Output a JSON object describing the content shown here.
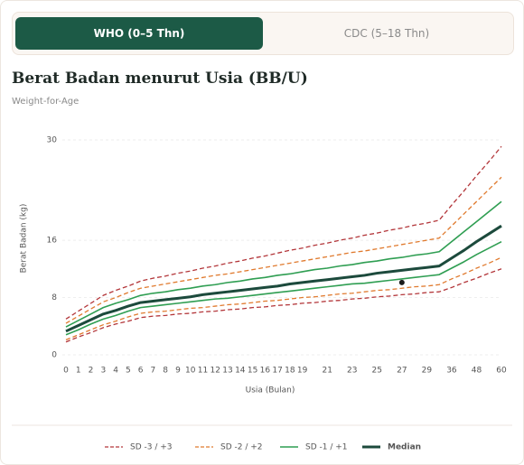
{
  "tabs": [
    {
      "label": "WHO (0–5 Thn)",
      "active": true
    },
    {
      "label": "CDC (5–18 Thn)",
      "active": false
    }
  ],
  "chart_data": {
    "type": "line",
    "title": "Berat Badan menurut Usia (BB/U)",
    "subtitle": "Weight-for-Age",
    "x_label": "Usia (Bulan)",
    "y_label": "Berat Badan (kg)",
    "categories": [
      0,
      1,
      2,
      3,
      4,
      5,
      6,
      7,
      8,
      9,
      10,
      11,
      12,
      13,
      14,
      15,
      16,
      17,
      18,
      19,
      null,
      21,
      null,
      23,
      null,
      25,
      null,
      27,
      null,
      29,
      null,
      36,
      null,
      48,
      null,
      60
    ],
    "ylim": [
      0,
      30
    ],
    "yticks": [
      0,
      8,
      16,
      30
    ],
    "grid": true,
    "series": [
      {
        "name": "SD -3 / +3",
        "color": "#b3363a",
        "dashed": true,
        "width": 1.3,
        "lines": [
          [
            1.8,
            2.5,
            3.1,
            3.8,
            4.3,
            4.7,
            5.2,
            5.4,
            5.5,
            5.7,
            5.8,
            6.0,
            6.1,
            6.3,
            6.4,
            6.6,
            6.7,
            6.9,
            7.0,
            7.2,
            7.3,
            7.5,
            7.6,
            7.8,
            7.9,
            8.1,
            8.2,
            8.4,
            8.5,
            8.7,
            8.8,
            9.4,
            10.1,
            10.7,
            11.4,
            12.0
          ],
          [
            5.0,
            6.1,
            7.2,
            8.3,
            9.0,
            9.6,
            10.3,
            10.7,
            11.0,
            11.4,
            11.7,
            12.1,
            12.4,
            12.8,
            13.1,
            13.5,
            13.8,
            14.2,
            14.6,
            14.9,
            15.3,
            15.6,
            16.0,
            16.3,
            16.7,
            17.0,
            17.4,
            17.7,
            18.1,
            18.4,
            18.8,
            20.9,
            22.9,
            25.0,
            27.0,
            29.1
          ]
        ]
      },
      {
        "name": "SD -2 / +2",
        "color": "#e07a2e",
        "dashed": true,
        "width": 1.3,
        "lines": [
          [
            2.1,
            2.8,
            3.5,
            4.2,
            4.7,
            5.3,
            5.8,
            6.0,
            6.1,
            6.3,
            6.5,
            6.6,
            6.8,
            7.0,
            7.1,
            7.3,
            7.5,
            7.6,
            7.8,
            8.0,
            8.1,
            8.3,
            8.5,
            8.6,
            8.8,
            9.0,
            9.1,
            9.3,
            9.5,
            9.6,
            9.8,
            10.6,
            11.3,
            12.1,
            12.8,
            13.6
          ],
          [
            4.4,
            5.4,
            6.4,
            7.4,
            8.0,
            8.7,
            9.3,
            9.6,
            9.9,
            10.2,
            10.5,
            10.8,
            11.1,
            11.3,
            11.6,
            11.9,
            12.2,
            12.5,
            12.8,
            13.1,
            13.4,
            13.7,
            14.0,
            14.3,
            14.5,
            14.8,
            15.1,
            15.4,
            15.7,
            16.0,
            16.3,
            18.0,
            19.7,
            21.4,
            23.1,
            24.8
          ]
        ]
      },
      {
        "name": "SD -1 / +1",
        "color": "#2f9e52",
        "dashed": false,
        "width": 1.6,
        "lines": [
          [
            2.8,
            3.5,
            4.3,
            5.0,
            5.5,
            6.1,
            6.6,
            6.8,
            7.0,
            7.2,
            7.4,
            7.6,
            7.8,
            7.9,
            8.1,
            8.3,
            8.5,
            8.7,
            8.9,
            9.1,
            9.3,
            9.5,
            9.7,
            9.9,
            10.0,
            10.2,
            10.4,
            10.6,
            10.8,
            11.0,
            11.2,
            12.1,
            13.0,
            14.0,
            14.9,
            15.8
          ],
          [
            3.9,
            4.8,
            5.7,
            6.6,
            7.2,
            7.7,
            8.3,
            8.6,
            8.8,
            9.1,
            9.3,
            9.6,
            9.8,
            10.1,
            10.3,
            10.6,
            10.8,
            11.1,
            11.3,
            11.6,
            11.9,
            12.1,
            12.4,
            12.6,
            12.9,
            13.1,
            13.4,
            13.6,
            13.9,
            14.1,
            14.4,
            15.8,
            17.2,
            18.6,
            20.0,
            21.4
          ]
        ]
      },
      {
        "name": "Median",
        "color": "#1c4a3c",
        "dashed": false,
        "width": 3,
        "lines": [
          [
            3.3,
            4.1,
            4.9,
            5.7,
            6.2,
            6.8,
            7.3,
            7.5,
            7.7,
            7.9,
            8.1,
            8.4,
            8.6,
            8.8,
            9.0,
            9.2,
            9.4,
            9.6,
            9.9,
            10.1,
            10.3,
            10.5,
            10.7,
            10.9,
            11.1,
            11.4,
            11.6,
            11.8,
            12.0,
            12.2,
            12.4,
            13.5,
            14.6,
            15.8,
            16.9,
            18.0
          ]
        ]
      }
    ],
    "marker": {
      "x": 27,
      "value": 10.1,
      "color": "#1a1a1a"
    }
  }
}
